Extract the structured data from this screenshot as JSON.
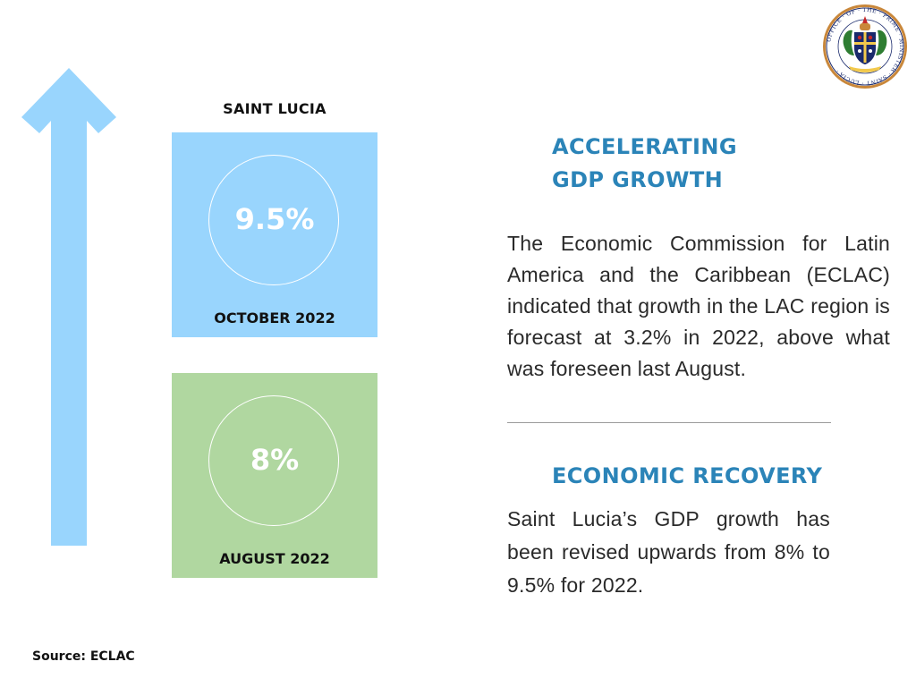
{
  "colors": {
    "arrow": "#99d5fd",
    "card_october": "#99d5fd",
    "card_august": "#b0d7a0",
    "heading": "#2b84b8",
    "logo_ring": "#c9873a",
    "logo_inner": "#1a2a6c"
  },
  "country": "SAINT LUCIA",
  "cards": [
    {
      "value": "9.5%",
      "date": "OCTOBER 2022"
    },
    {
      "value": "8%",
      "date": "AUGUST 2022"
    }
  ],
  "section1": {
    "heading_line1": "ACCELERATING",
    "heading_line2": "GDP GROWTH",
    "text": "The Economic Commission for Latin America and the Caribbean (ECLAC) indicated that  growth in the LAC region is forecast at 3.2% in 2022, above what was foreseen last August."
  },
  "section2": {
    "heading": "ECONOMIC RECOVERY",
    "text": "Saint Lucia’s GDP growth has been revised upwards from 8% to 9.5% for 2022."
  },
  "source": "Source: ECLAC",
  "logo": {
    "icon": "office-seal-icon",
    "text": "OFFICE OF THE PRIME MINISTER SAINT LUCIA"
  }
}
